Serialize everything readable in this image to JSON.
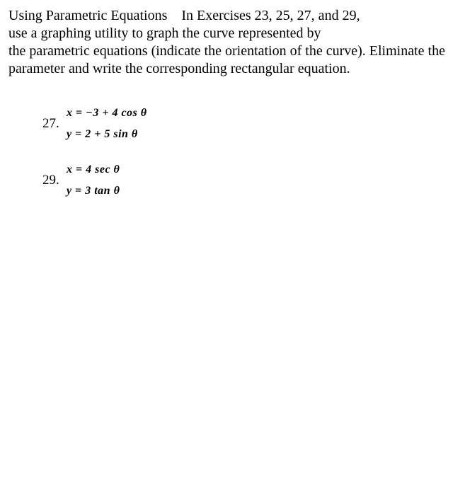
{
  "instructions": {
    "line1": "Using Parametric Equations In Exercises 23, 25, 27, and 29,",
    "line2": "use a graphing utility to graph the curve represented by",
    "line3": "the parametric equations (indicate the orientation of the curve). Eliminate the",
    "line4": "parameter and write the corresponding rectangular equation."
  },
  "problems": [
    {
      "number": "27.",
      "eq1": {
        "lhs": "x",
        "rhs": "−3 + 4 cos θ"
      },
      "eq2": {
        "lhs": "y",
        "rhs": "2 + 5 sin θ"
      }
    },
    {
      "number": "29.",
      "eq1": {
        "lhs": "x",
        "rhs": "4 sec θ"
      },
      "eq2": {
        "lhs": "y",
        "rhs": "3 tan θ"
      }
    }
  ],
  "colors": {
    "background": "#ffffff",
    "text": "#000000"
  },
  "typography": {
    "body_font": "Times New Roman",
    "body_size_pt": 15,
    "eq_weight": "bold",
    "eq_style": "italic"
  }
}
